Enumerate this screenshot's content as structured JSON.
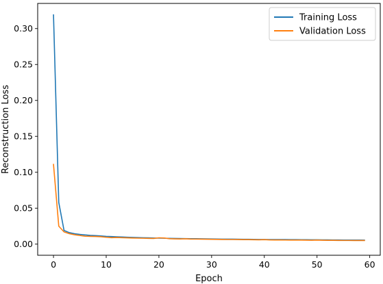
{
  "chart_data": {
    "type": "line",
    "title": "",
    "xlabel": "Epoch",
    "ylabel": "Reconstruction Loss",
    "xlim": [
      -3,
      62
    ],
    "ylim": [
      -0.0155,
      0.335
    ],
    "xticks": [
      0,
      10,
      20,
      30,
      40,
      50,
      60
    ],
    "yticks": [
      0.0,
      0.05,
      0.1,
      0.15,
      0.2,
      0.25,
      0.3
    ],
    "ytick_labels": [
      "0.00",
      "0.05",
      "0.10",
      "0.15",
      "0.20",
      "0.25",
      "0.30"
    ],
    "grid": false,
    "legend_position": "top-right",
    "x": [
      0,
      1,
      2,
      3,
      4,
      5,
      6,
      7,
      8,
      9,
      10,
      11,
      12,
      13,
      14,
      15,
      16,
      17,
      18,
      19,
      20,
      21,
      22,
      23,
      24,
      25,
      26,
      27,
      28,
      29,
      30,
      31,
      32,
      33,
      34,
      35,
      36,
      37,
      38,
      39,
      40,
      41,
      42,
      43,
      44,
      45,
      46,
      47,
      48,
      49,
      50,
      51,
      52,
      53,
      54,
      55,
      56,
      57,
      58,
      59
    ],
    "series": [
      {
        "name": "Training Loss",
        "color": "#1f77b4",
        "values": [
          0.319,
          0.058,
          0.019,
          0.016,
          0.0145,
          0.0135,
          0.0128,
          0.0122,
          0.0118,
          0.0113,
          0.0108,
          0.0105,
          0.0102,
          0.0099,
          0.0096,
          0.0093,
          0.0091,
          0.0089,
          0.0087,
          0.0085,
          0.0083,
          0.0082,
          0.008,
          0.0079,
          0.0078,
          0.0077,
          0.0076,
          0.0075,
          0.0074,
          0.0073,
          0.0072,
          0.0071,
          0.007,
          0.0069,
          0.0069,
          0.0068,
          0.0067,
          0.0067,
          0.0066,
          0.0065,
          0.0065,
          0.0064,
          0.0064,
          0.0063,
          0.0063,
          0.0062,
          0.0062,
          0.0061,
          0.0061,
          0.006,
          0.006,
          0.0059,
          0.0059,
          0.0058,
          0.0058,
          0.0057,
          0.0057,
          0.0056,
          0.0056,
          0.0055
        ]
      },
      {
        "name": "Validation Loss",
        "color": "#ff7f0e",
        "values": [
          0.111,
          0.025,
          0.017,
          0.0145,
          0.013,
          0.012,
          0.011,
          0.0108,
          0.0106,
          0.0103,
          0.0095,
          0.009,
          0.0092,
          0.0089,
          0.0087,
          0.0085,
          0.0083,
          0.0082,
          0.008,
          0.0079,
          0.0088,
          0.0085,
          0.0075,
          0.0073,
          0.0072,
          0.0074,
          0.0071,
          0.007,
          0.0069,
          0.0068,
          0.0067,
          0.0066,
          0.0065,
          0.0064,
          0.0064,
          0.0063,
          0.0062,
          0.0062,
          0.0061,
          0.006,
          0.0062,
          0.0059,
          0.0058,
          0.0058,
          0.0057,
          0.0056,
          0.0057,
          0.0056,
          0.0055,
          0.0054,
          0.0056,
          0.0054,
          0.0053,
          0.0053,
          0.0052,
          0.0051,
          0.0051,
          0.005,
          0.005,
          0.005
        ]
      }
    ]
  }
}
